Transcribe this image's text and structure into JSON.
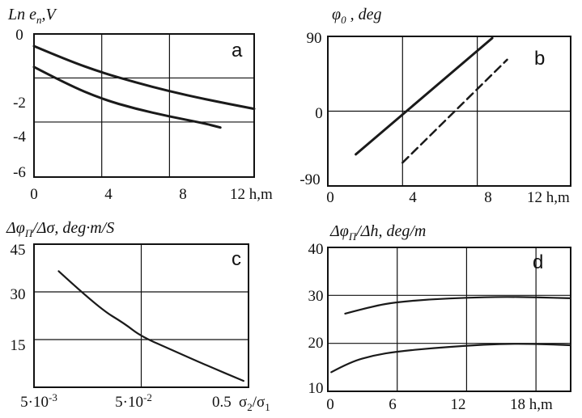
{
  "chart_data": [
    {
      "panel": "a",
      "type": "line",
      "title": "Ln e_п ,V",
      "xlabel": "h,m",
      "xlim": [
        0,
        13
      ],
      "ylim": [
        -6.5,
        0
      ],
      "x_ticks": [
        0,
        4,
        8,
        12
      ],
      "y_ticks": [
        0,
        -2,
        -4,
        -6
      ],
      "x_grid": [
        4,
        8
      ],
      "y_grid": [
        -2,
        -4
      ],
      "series": [
        {
          "x": [
            0,
            2,
            4,
            6,
            8,
            10,
            13
          ],
          "y": [
            -0.55,
            -1.2,
            -1.75,
            -2.2,
            -2.6,
            -2.95,
            -3.4
          ]
        },
        {
          "x": [
            0,
            2,
            4,
            6,
            8,
            10,
            11
          ],
          "y": [
            -1.5,
            -2.3,
            -2.95,
            -3.4,
            -3.75,
            -4.05,
            -4.25
          ]
        }
      ]
    },
    {
      "panel": "b",
      "type": "line",
      "title": "φ0 , deg",
      "xlabel": "h,m",
      "xlim": [
        0,
        13
      ],
      "ylim": [
        -90,
        90
      ],
      "x_ticks": [
        0,
        4,
        8,
        12
      ],
      "y_ticks": [
        90,
        0,
        -90
      ],
      "x_grid": [
        4,
        8
      ],
      "y_grid": [
        0
      ],
      "series": [
        {
          "style": "solid",
          "x": [
            1.5,
            8.8
          ],
          "y": [
            -52,
            88
          ]
        },
        {
          "style": "dashed",
          "x": [
            4,
            9.6
          ],
          "y": [
            -62,
            62
          ]
        }
      ]
    },
    {
      "panel": "c",
      "type": "line",
      "title": "Δφп/Δσ, deg·m/S",
      "xlabel": "σ2/σ1",
      "x_scale": "log",
      "xlim": [
        0.005,
        0.5
      ],
      "ylim": [
        0,
        45
      ],
      "x_ticks": [
        "5·10-3",
        "5·10-2",
        "0.5"
      ],
      "y_ticks": [
        45,
        30,
        15
      ],
      "x_grid": [
        0.05
      ],
      "y_grid": [
        30,
        15
      ],
      "series": [
        {
          "x": [
            0.0085,
            0.02,
            0.035,
            0.05,
            0.1,
            0.2,
            0.45
          ],
          "y": [
            36.5,
            25,
            20,
            16,
            11.5,
            7,
            2
          ]
        }
      ]
    },
    {
      "panel": "d",
      "type": "line",
      "title": "Δφп/Δh, deg/m",
      "xlabel": "h,m",
      "xlim": [
        0,
        21
      ],
      "ylim": [
        10,
        40
      ],
      "x_ticks": [
        0,
        6,
        12,
        18
      ],
      "y_ticks": [
        40,
        30,
        20,
        10
      ],
      "x_grid": [
        6,
        12,
        18
      ],
      "y_grid": [
        30,
        20
      ],
      "series": [
        {
          "x": [
            1.5,
            4,
            6,
            9,
            12,
            15,
            18,
            21
          ],
          "y": [
            26.2,
            27.8,
            28.6,
            29.2,
            29.5,
            29.7,
            29.6,
            29.4
          ]
        },
        {
          "x": [
            0.3,
            2,
            4,
            6,
            9,
            12,
            15,
            18,
            21
          ],
          "y": [
            14,
            16.2,
            17.5,
            18.3,
            19,
            19.5,
            19.9,
            19.9,
            19.6
          ]
        }
      ]
    }
  ],
  "labels": {
    "a_title": "Ln e",
    "a_title_sub": "п",
    "a_title_tail": ",V",
    "a_letter": "a",
    "a_xticks": [
      "0",
      "4",
      "8",
      "12 h,m"
    ],
    "a_yticks": [
      "0",
      "-2",
      "-4",
      "-6"
    ],
    "b_title": "φ",
    "b_title_sub": "0",
    "b_title_tail": " , deg",
    "b_letter": "b",
    "b_xticks": [
      "0",
      "4",
      "8",
      "12 h,m"
    ],
    "b_yticks": [
      "90",
      "0",
      "-90"
    ],
    "c_title": "Δφ",
    "c_title_sub": "П",
    "c_title_tail": "/Δσ, deg·m/S",
    "c_letter": "c",
    "c_yticks": [
      "45",
      "30",
      "15"
    ],
    "c_xtick0": "5·10",
    "c_xtick0_exp": "-3",
    "c_xtick1": "5·10",
    "c_xtick1_exp": "-2",
    "c_xtick2": "0.5",
    "c_xlabel_a": "σ",
    "c_xlabel_a_sub": "2",
    "c_xlabel_b": "/σ",
    "c_xlabel_b_sub": "1",
    "d_title": "Δφ",
    "d_title_sub": "П",
    "d_title_tail": "/Δh, deg/m",
    "d_letter": "d",
    "d_xticks": [
      "0",
      "6",
      "12",
      "18 h,m"
    ],
    "d_yticks": [
      "40",
      "30",
      "20",
      "10"
    ]
  }
}
